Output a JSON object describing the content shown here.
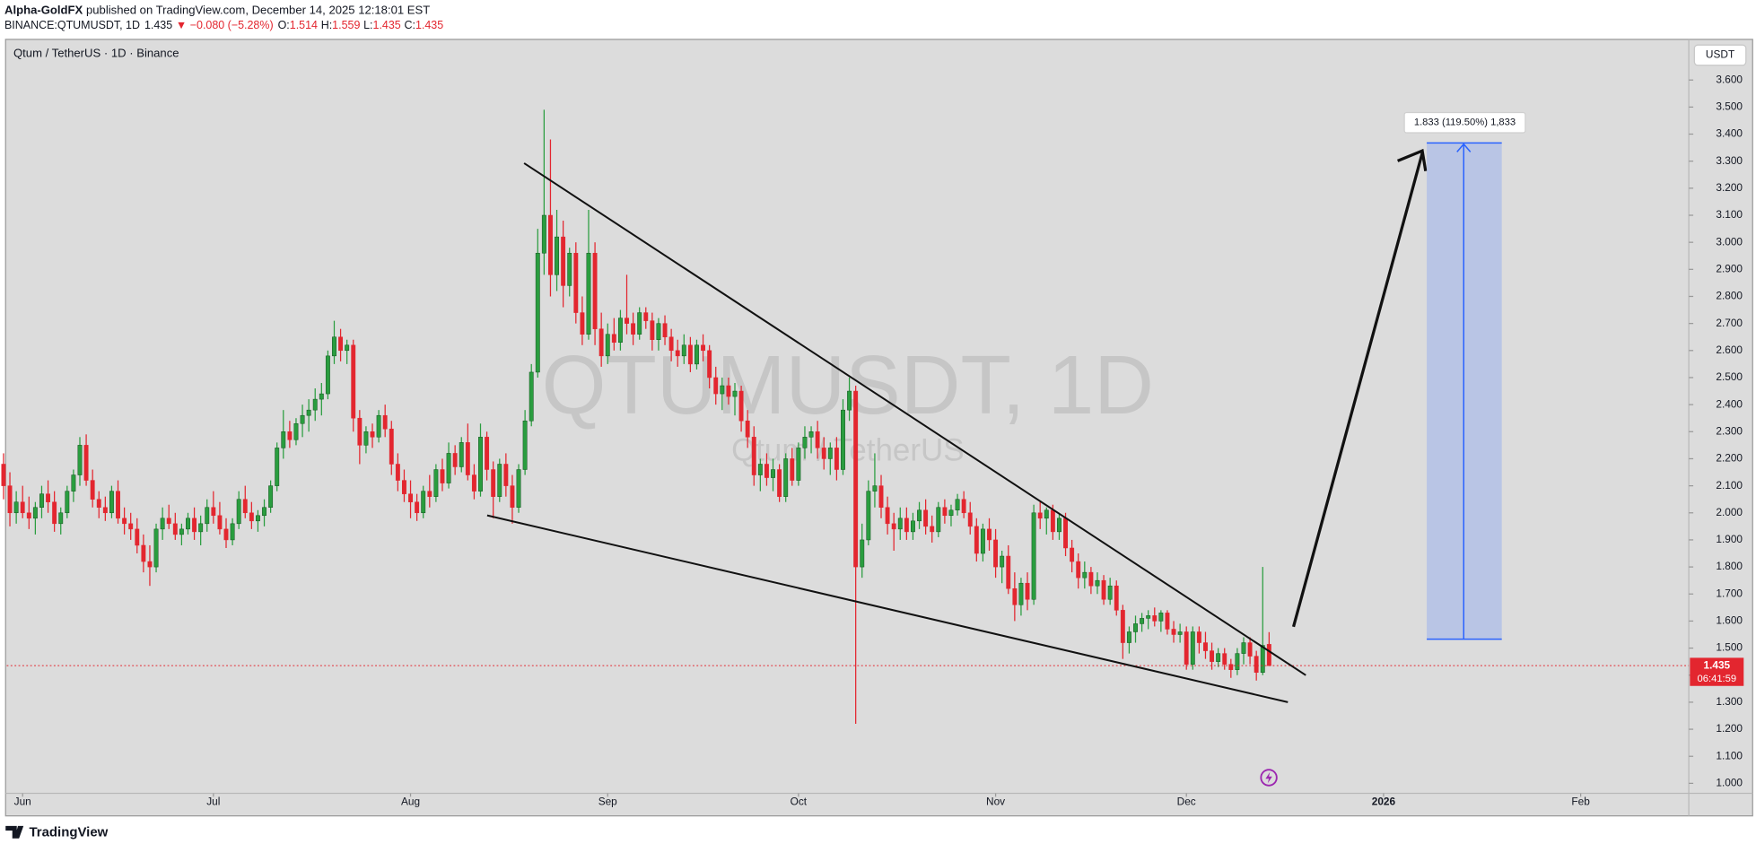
{
  "header": {
    "author": "Alpha-GoldFX",
    "published": "published on TradingView.com, December 14, 2025 12:18:01 EST",
    "symbol": "BINANCE:QTUMUSDT, 1D",
    "change": "▼ −0.080 (−5.28%)",
    "o": "O:",
    "h": "H:",
    "l": "L:",
    "c": "C:"
  },
  "chart_data": {
    "type": "candlestick",
    "title": "Qtum / TetherUS · 1D · Binance",
    "watermark": "QTUMUSDT, 1D",
    "watermark_sub": "Qtum / TetherUS",
    "currency": "USDT",
    "up_color": "#2a9d3f",
    "down_color": "#e3262f",
    "candles": [
      [
        2.18,
        2.22,
        2.05,
        2.1
      ],
      [
        2.1,
        2.15,
        1.95,
        2.0
      ],
      [
        2.0,
        2.08,
        1.96,
        2.04
      ],
      [
        2.04,
        2.1,
        1.98,
        2.0
      ],
      [
        2.0,
        2.06,
        1.94,
        1.98
      ],
      [
        1.98,
        2.04,
        1.92,
        2.02
      ],
      [
        2.02,
        2.1,
        1.98,
        2.07
      ],
      [
        2.07,
        2.12,
        2.0,
        2.04
      ],
      [
        2.04,
        2.08,
        1.93,
        1.96
      ],
      [
        1.96,
        2.02,
        1.92,
        2.0
      ],
      [
        2.0,
        2.1,
        1.98,
        2.08
      ],
      [
        2.08,
        2.16,
        2.04,
        2.14
      ],
      [
        2.14,
        2.28,
        2.1,
        2.25
      ],
      [
        2.25,
        2.29,
        2.1,
        2.12
      ],
      [
        2.12,
        2.16,
        2.02,
        2.05
      ],
      [
        2.05,
        2.08,
        1.98,
        2.02
      ],
      [
        2.02,
        2.06,
        1.97,
        2.0
      ],
      [
        2.0,
        2.1,
        1.98,
        2.08
      ],
      [
        2.08,
        2.12,
        1.96,
        1.98
      ],
      [
        1.98,
        2.02,
        1.92,
        1.96
      ],
      [
        1.96,
        2.0,
        1.9,
        1.94
      ],
      [
        1.94,
        1.98,
        1.85,
        1.88
      ],
      [
        1.88,
        1.92,
        1.78,
        1.82
      ],
      [
        1.82,
        1.88,
        1.73,
        1.8
      ],
      [
        1.8,
        1.96,
        1.78,
        1.94
      ],
      [
        1.94,
        2.02,
        1.9,
        1.98
      ],
      [
        1.98,
        2.03,
        1.94,
        1.96
      ],
      [
        1.96,
        2.0,
        1.9,
        1.92
      ],
      [
        1.92,
        1.96,
        1.88,
        1.94
      ],
      [
        1.94,
        2.0,
        1.92,
        1.98
      ],
      [
        1.98,
        2.02,
        1.9,
        1.93
      ],
      [
        1.93,
        1.99,
        1.88,
        1.96
      ],
      [
        1.96,
        2.05,
        1.93,
        2.02
      ],
      [
        2.02,
        2.08,
        1.96,
        1.99
      ],
      [
        1.99,
        2.04,
        1.92,
        1.94
      ],
      [
        1.94,
        1.98,
        1.87,
        1.9
      ],
      [
        1.9,
        1.98,
        1.88,
        1.96
      ],
      [
        1.96,
        2.08,
        1.94,
        2.05
      ],
      [
        2.05,
        2.1,
        1.98,
        2.0
      ],
      [
        2.0,
        2.04,
        1.94,
        1.97
      ],
      [
        1.97,
        2.01,
        1.93,
        1.99
      ],
      [
        1.99,
        2.05,
        1.95,
        2.02
      ],
      [
        2.02,
        2.12,
        2.0,
        2.1
      ],
      [
        2.1,
        2.26,
        2.08,
        2.24
      ],
      [
        2.24,
        2.38,
        2.2,
        2.3
      ],
      [
        2.3,
        2.34,
        2.24,
        2.27
      ],
      [
        2.27,
        2.35,
        2.25,
        2.33
      ],
      [
        2.33,
        2.4,
        2.28,
        2.36
      ],
      [
        2.36,
        2.42,
        2.3,
        2.38
      ],
      [
        2.38,
        2.46,
        2.34,
        2.42
      ],
      [
        2.42,
        2.48,
        2.36,
        2.44
      ],
      [
        2.44,
        2.6,
        2.42,
        2.58
      ],
      [
        2.58,
        2.71,
        2.55,
        2.65
      ],
      [
        2.65,
        2.68,
        2.56,
        2.6
      ],
      [
        2.6,
        2.64,
        2.55,
        2.62
      ],
      [
        2.62,
        2.64,
        2.3,
        2.35
      ],
      [
        2.35,
        2.38,
        2.18,
        2.25
      ],
      [
        2.25,
        2.32,
        2.22,
        2.3
      ],
      [
        2.3,
        2.33,
        2.24,
        2.28
      ],
      [
        2.28,
        2.38,
        2.26,
        2.36
      ],
      [
        2.36,
        2.4,
        2.28,
        2.31
      ],
      [
        2.31,
        2.34,
        2.14,
        2.18
      ],
      [
        2.18,
        2.22,
        2.08,
        2.12
      ],
      [
        2.12,
        2.16,
        2.04,
        2.07
      ],
      [
        2.07,
        2.12,
        1.98,
        2.04
      ],
      [
        2.04,
        2.07,
        1.97,
        2.0
      ],
      [
        2.0,
        2.1,
        1.98,
        2.08
      ],
      [
        2.08,
        2.14,
        2.02,
        2.06
      ],
      [
        2.06,
        2.18,
        2.04,
        2.16
      ],
      [
        2.16,
        2.2,
        2.08,
        2.11
      ],
      [
        2.11,
        2.26,
        2.09,
        2.22
      ],
      [
        2.22,
        2.25,
        2.14,
        2.17
      ],
      [
        2.17,
        2.28,
        2.15,
        2.26
      ],
      [
        2.26,
        2.33,
        2.12,
        2.14
      ],
      [
        2.14,
        2.18,
        2.05,
        2.08
      ],
      [
        2.08,
        2.33,
        2.06,
        2.28
      ],
      [
        2.28,
        2.3,
        2.12,
        2.16
      ],
      [
        2.16,
        2.19,
        1.98,
        2.06
      ],
      [
        2.06,
        2.2,
        2.04,
        2.18
      ],
      [
        2.18,
        2.22,
        2.06,
        2.1
      ],
      [
        2.1,
        2.14,
        1.96,
        2.02
      ],
      [
        2.02,
        2.18,
        2.0,
        2.16
      ],
      [
        2.16,
        2.38,
        2.14,
        2.34
      ],
      [
        2.34,
        2.55,
        2.32,
        2.52
      ],
      [
        2.52,
        3.05,
        2.5,
        2.96
      ],
      [
        2.96,
        3.49,
        2.88,
        3.1
      ],
      [
        3.1,
        3.38,
        2.8,
        2.88
      ],
      [
        2.88,
        3.12,
        2.82,
        3.02
      ],
      [
        3.02,
        3.08,
        2.76,
        2.84
      ],
      [
        2.84,
        2.98,
        2.8,
        2.96
      ],
      [
        2.96,
        3.0,
        2.7,
        2.74
      ],
      [
        2.74,
        2.8,
        2.62,
        2.66
      ],
      [
        2.66,
        3.12,
        2.64,
        2.96
      ],
      [
        2.96,
        3.0,
        2.62,
        2.68
      ],
      [
        2.68,
        2.74,
        2.54,
        2.58
      ],
      [
        2.58,
        2.7,
        2.55,
        2.66
      ],
      [
        2.66,
        2.72,
        2.6,
        2.63
      ],
      [
        2.63,
        2.75,
        2.6,
        2.72
      ],
      [
        2.72,
        2.88,
        2.66,
        2.7
      ],
      [
        2.7,
        2.74,
        2.62,
        2.66
      ],
      [
        2.66,
        2.76,
        2.64,
        2.74
      ],
      [
        2.74,
        2.76,
        2.68,
        2.71
      ],
      [
        2.71,
        2.74,
        2.6,
        2.64
      ],
      [
        2.64,
        2.72,
        2.6,
        2.7
      ],
      [
        2.7,
        2.73,
        2.62,
        2.65
      ],
      [
        2.65,
        2.68,
        2.56,
        2.6
      ],
      [
        2.6,
        2.64,
        2.54,
        2.58
      ],
      [
        2.58,
        2.66,
        2.55,
        2.62
      ],
      [
        2.62,
        2.65,
        2.52,
        2.55
      ],
      [
        2.55,
        2.64,
        2.53,
        2.62
      ],
      [
        2.62,
        2.66,
        2.56,
        2.6
      ],
      [
        2.6,
        2.62,
        2.46,
        2.5
      ],
      [
        2.5,
        2.54,
        2.4,
        2.44
      ],
      [
        2.44,
        2.5,
        2.38,
        2.47
      ],
      [
        2.47,
        2.5,
        2.4,
        2.43
      ],
      [
        2.43,
        2.48,
        2.36,
        2.45
      ],
      [
        2.45,
        2.47,
        2.3,
        2.34
      ],
      [
        2.34,
        2.38,
        2.24,
        2.28
      ],
      [
        2.28,
        2.32,
        2.1,
        2.14
      ],
      [
        2.14,
        2.2,
        2.08,
        2.18
      ],
      [
        2.18,
        2.22,
        2.1,
        2.13
      ],
      [
        2.13,
        2.2,
        2.08,
        2.16
      ],
      [
        2.16,
        2.18,
        2.04,
        2.06
      ],
      [
        2.06,
        2.22,
        2.04,
        2.2
      ],
      [
        2.2,
        2.24,
        2.1,
        2.12
      ],
      [
        2.12,
        2.26,
        2.1,
        2.24
      ],
      [
        2.24,
        2.32,
        2.2,
        2.28
      ],
      [
        2.28,
        2.32,
        2.22,
        2.3
      ],
      [
        2.3,
        2.34,
        2.2,
        2.24
      ],
      [
        2.24,
        2.28,
        2.16,
        2.2
      ],
      [
        2.2,
        2.26,
        2.14,
        2.24
      ],
      [
        2.24,
        2.28,
        2.12,
        2.16
      ],
      [
        2.16,
        2.42,
        2.14,
        2.38
      ],
      [
        2.38,
        2.5,
        2.34,
        2.45
      ],
      [
        2.45,
        2.47,
        1.22,
        1.8
      ],
      [
        1.8,
        1.96,
        1.76,
        1.9
      ],
      [
        1.9,
        2.12,
        1.88,
        2.08
      ],
      [
        2.08,
        2.22,
        2.02,
        2.1
      ],
      [
        2.1,
        2.14,
        1.98,
        2.02
      ],
      [
        2.02,
        2.06,
        1.92,
        1.96
      ],
      [
        1.96,
        2.0,
        1.86,
        1.94
      ],
      [
        1.94,
        2.02,
        1.9,
        1.98
      ],
      [
        1.98,
        2.02,
        1.9,
        1.93
      ],
      [
        1.93,
        2.0,
        1.9,
        1.97
      ],
      [
        1.97,
        2.04,
        1.94,
        2.01
      ],
      [
        2.01,
        2.05,
        1.92,
        1.95
      ],
      [
        1.95,
        1.99,
        1.89,
        1.93
      ],
      [
        1.93,
        2.04,
        1.91,
        2.02
      ],
      [
        2.02,
        2.05,
        1.96,
        1.99
      ],
      [
        1.99,
        2.03,
        1.95,
        2.01
      ],
      [
        2.01,
        2.07,
        1.99,
        2.05
      ],
      [
        2.05,
        2.08,
        1.98,
        2.0
      ],
      [
        2.0,
        2.04,
        1.92,
        1.95
      ],
      [
        1.95,
        1.98,
        1.82,
        1.85
      ],
      [
        1.85,
        1.96,
        1.82,
        1.94
      ],
      [
        1.94,
        1.98,
        1.86,
        1.9
      ],
      [
        1.9,
        1.94,
        1.76,
        1.8
      ],
      [
        1.8,
        1.86,
        1.74,
        1.84
      ],
      [
        1.84,
        1.88,
        1.7,
        1.72
      ],
      [
        1.72,
        1.78,
        1.6,
        1.66
      ],
      [
        1.66,
        1.76,
        1.62,
        1.74
      ],
      [
        1.74,
        1.78,
        1.64,
        1.68
      ],
      [
        1.68,
        2.03,
        1.66,
        2.0
      ],
      [
        2.0,
        2.04,
        1.94,
        1.98
      ],
      [
        1.98,
        2.02,
        1.92,
        2.01
      ],
      [
        2.01,
        2.03,
        1.9,
        1.93
      ],
      [
        1.93,
        2.0,
        1.9,
        1.98
      ],
      [
        1.98,
        2.0,
        1.84,
        1.87
      ],
      [
        1.87,
        1.9,
        1.78,
        1.82
      ],
      [
        1.82,
        1.85,
        1.72,
        1.76
      ],
      [
        1.76,
        1.82,
        1.72,
        1.78
      ],
      [
        1.78,
        1.8,
        1.7,
        1.73
      ],
      [
        1.73,
        1.78,
        1.7,
        1.75
      ],
      [
        1.75,
        1.77,
        1.66,
        1.68
      ],
      [
        1.68,
        1.76,
        1.66,
        1.73
      ],
      [
        1.73,
        1.75,
        1.62,
        1.64
      ],
      [
        1.64,
        1.66,
        1.46,
        1.52
      ],
      [
        1.52,
        1.58,
        1.48,
        1.56
      ],
      [
        1.56,
        1.62,
        1.52,
        1.59
      ],
      [
        1.59,
        1.63,
        1.56,
        1.61
      ],
      [
        1.61,
        1.64,
        1.57,
        1.62
      ],
      [
        1.62,
        1.65,
        1.58,
        1.6
      ],
      [
        1.6,
        1.64,
        1.56,
        1.63
      ],
      [
        1.63,
        1.64,
        1.55,
        1.57
      ],
      [
        1.57,
        1.6,
        1.52,
        1.55
      ],
      [
        1.55,
        1.59,
        1.52,
        1.56
      ],
      [
        1.56,
        1.58,
        1.42,
        1.44
      ],
      [
        1.44,
        1.58,
        1.42,
        1.56
      ],
      [
        1.56,
        1.58,
        1.48,
        1.52
      ],
      [
        1.52,
        1.56,
        1.46,
        1.49
      ],
      [
        1.49,
        1.52,
        1.42,
        1.45
      ],
      [
        1.45,
        1.5,
        1.43,
        1.48
      ],
      [
        1.48,
        1.5,
        1.42,
        1.44
      ],
      [
        1.44,
        1.46,
        1.39,
        1.42
      ],
      [
        1.42,
        1.5,
        1.4,
        1.48
      ],
      [
        1.48,
        1.54,
        1.44,
        1.52
      ],
      [
        1.52,
        1.54,
        1.44,
        1.47
      ],
      [
        1.47,
        1.49,
        1.38,
        1.41
      ],
      [
        1.41,
        1.8,
        1.4,
        1.51
      ],
      [
        1.514,
        1.559,
        1.435,
        1.435
      ]
    ],
    "last_price": 1.435,
    "countdown": "06:41:59",
    "measure_label": "1.833 (119.50%) 1,833",
    "xlim": [
      0.5,
      265
    ],
    "xticks": [
      {
        "value": 3,
        "label": "Jun"
      },
      {
        "value": 33,
        "label": "Jul"
      },
      {
        "value": 64,
        "label": "Aug"
      },
      {
        "value": 95,
        "label": "Sep"
      },
      {
        "value": 125,
        "label": "Oct"
      },
      {
        "value": 156,
        "label": "Nov"
      },
      {
        "value": 186,
        "label": "Dec"
      },
      {
        "value": 217,
        "label": "2026"
      },
      {
        "value": 248,
        "label": "Feb"
      }
    ],
    "ylim": [
      0.963,
      3.746
    ],
    "yticks": [
      {
        "value": 1.0,
        "label": "1.000"
      },
      {
        "value": 1.1,
        "label": "1.100"
      },
      {
        "value": 1.2,
        "label": "1.200"
      },
      {
        "value": 1.3,
        "label": "1.300"
      },
      {
        "value": 1.4,
        "label": "1.400"
      },
      {
        "value": 1.5,
        "label": "1.500"
      },
      {
        "value": 1.6,
        "label": "1.600"
      },
      {
        "value": 1.7,
        "label": "1.700"
      },
      {
        "value": 1.8,
        "label": "1.800"
      },
      {
        "value": 1.9,
        "label": "1.900"
      },
      {
        "value": 2.0,
        "label": "2.000"
      },
      {
        "value": 2.1,
        "label": "2.100"
      },
      {
        "value": 2.2,
        "label": "2.200"
      },
      {
        "value": 2.3,
        "label": "2.300"
      },
      {
        "value": 2.4,
        "label": "2.400"
      },
      {
        "value": 2.5,
        "label": "2.500"
      },
      {
        "value": 2.6,
        "label": "2.600"
      },
      {
        "value": 2.7,
        "label": "2.700"
      },
      {
        "value": 2.8,
        "label": "2.800"
      },
      {
        "value": 2.9,
        "label": "2.900"
      },
      {
        "value": 3.0,
        "label": "3.000"
      },
      {
        "value": 3.1,
        "label": "3.100"
      },
      {
        "value": 3.2,
        "label": "3.200"
      },
      {
        "value": 3.3,
        "label": "3.300"
      },
      {
        "value": 3.4,
        "label": "3.400"
      },
      {
        "value": 3.5,
        "label": "3.500"
      },
      {
        "value": 3.6,
        "label": "3.600"
      }
    ],
    "grid": false
  },
  "footer": {
    "brand": "TradingView"
  }
}
